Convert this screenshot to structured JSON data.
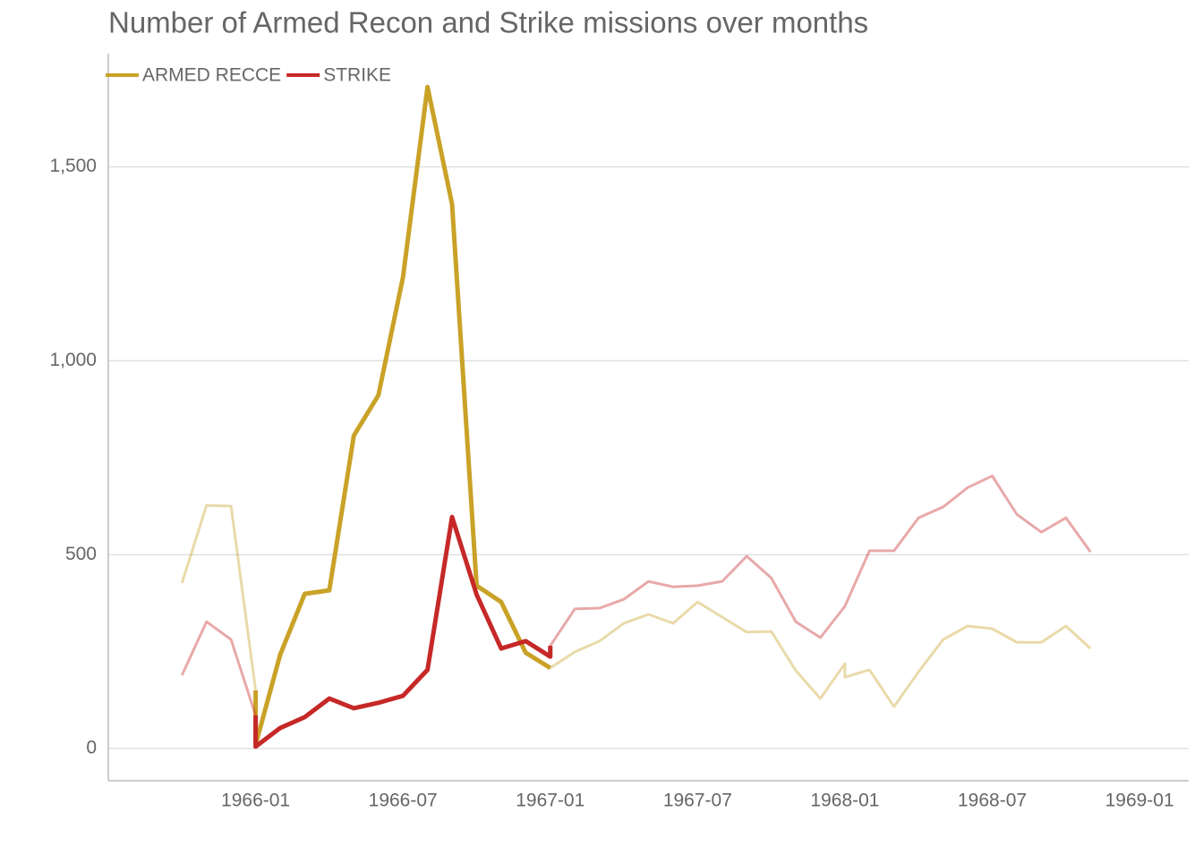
{
  "chart_data": {
    "type": "line",
    "title": "Number of Armed Recon and Strike missions over months",
    "legend": "top-left",
    "grid": true,
    "highlight": {
      "from": "1966-01",
      "to": "1967-01"
    },
    "xlim": [
      "1965-07",
      "1969-03"
    ],
    "xticks": [
      "1966-01",
      "1966-07",
      "1967-01",
      "1967-07",
      "1968-01",
      "1968-07",
      "1969-01"
    ],
    "ylim": [
      -83,
      1792
    ],
    "yticks": [
      0,
      500,
      {
        "value": 1000,
        "label": "1,000"
      },
      {
        "value": 1500,
        "label": "1,500"
      }
    ],
    "series": [
      {
        "name": "ARMED RECCE",
        "color": "#c9a227",
        "x": [
          "1965-10",
          "1965-11",
          "1965-12",
          "1966-01",
          "1966-01",
          "1966-02",
          "1966-03",
          "1966-04",
          "1966-05",
          "1966-06",
          "1966-07",
          "1966-08",
          "1966-09",
          "1966-10",
          "1966-11",
          "1966-12",
          "1967-01",
          "1967-02",
          "1967-03",
          "1967-04",
          "1967-05",
          "1967-06",
          "1967-07",
          "1967-08",
          "1967-09",
          "1967-10",
          "1967-11",
          "1967-12",
          "1968-01",
          "1968-01",
          "1968-02",
          "1968-03",
          "1968-04",
          "1968-05",
          "1968-06",
          "1968-07",
          "1968-08",
          "1968-09",
          "1968-10",
          "1968-11"
        ],
        "values": [
          427,
          627,
          625,
          150,
          10,
          242,
          399,
          408,
          807,
          911,
          1215,
          1706,
          1404,
          420,
          378,
          247,
          208,
          249,
          277,
          323,
          346,
          323,
          378,
          339,
          300,
          302,
          201,
          129,
          219,
          184,
          203,
          108,
          198,
          281,
          316,
          309,
          274,
          274,
          316,
          258
        ]
      },
      {
        "name": "STRIKE",
        "color": "#c62828",
        "x": [
          "1965-10",
          "1965-11",
          "1965-12",
          "1966-01",
          "1966-01",
          "1966-02",
          "1966-03",
          "1966-04",
          "1966-05",
          "1966-06",
          "1966-07",
          "1966-08",
          "1966-09",
          "1966-10",
          "1966-11",
          "1966-12",
          "1967-01",
          "1967-01",
          "1967-02",
          "1967-03",
          "1967-04",
          "1967-05",
          "1967-06",
          "1967-07",
          "1967-08",
          "1967-09",
          "1967-10",
          "1967-11",
          "1967-12",
          "1968-01",
          "1968-02",
          "1968-03",
          "1968-04",
          "1968-05",
          "1968-06",
          "1968-07",
          "1968-08",
          "1968-09",
          "1968-10",
          "1968-11"
        ],
        "values": [
          189,
          327,
          281,
          85,
          5,
          53,
          81,
          129,
          104,
          118,
          136,
          203,
          597,
          397,
          258,
          277,
          237,
          265,
          360,
          362,
          385,
          431,
          417,
          420,
          431,
          496,
          440,
          327,
          286,
          367,
          510,
          510,
          595,
          623,
          673,
          703,
          604,
          558,
          595,
          507
        ]
      }
    ]
  }
}
